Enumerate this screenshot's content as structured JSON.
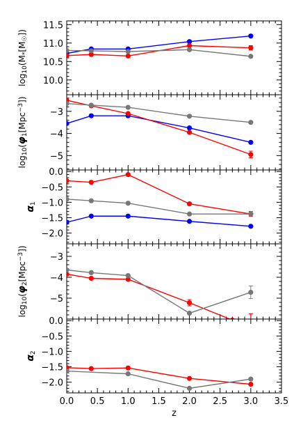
{
  "chart_data": {
    "type": "line",
    "xlabel": "z",
    "x_ticks": [
      "0.0",
      "0.5",
      "1.0",
      "1.5",
      "2.0",
      "2.5",
      "3.0",
      "3.5"
    ],
    "xlim": [
      0,
      3.5
    ],
    "panels": [
      {
        "ylabel_parts": [
          [
            "log",
            "n"
          ],
          [
            "10",
            "sub"
          ],
          [
            "(M",
            "n"
          ],
          [
            "*",
            "sub"
          ],
          [
            "[M",
            "n"
          ],
          [
            "☉",
            "sub"
          ],
          [
            "])",
            "n"
          ]
        ],
        "ylim": [
          9.6,
          11.6
        ],
        "y_ticks": [
          {
            "v": 10.0,
            "t": "10.0"
          },
          {
            "v": 10.5,
            "t": "10.5"
          },
          {
            "v": 11.0,
            "t": "11.0"
          },
          {
            "v": 11.5,
            "t": "11.5"
          }
        ],
        "series": [
          {
            "color": "#0000ff",
            "x": [
              0,
              0.4,
              1.0,
              2.0,
              3.0
            ],
            "y": [
              10.72,
              10.84,
              10.84,
              11.04,
              11.19
            ],
            "err": [
              0,
              0,
              0,
              0,
              0
            ]
          },
          {
            "color": "#ff0000",
            "x": [
              0,
              0.4,
              1.0,
              2.0,
              3.0
            ],
            "y": [
              10.66,
              10.69,
              10.65,
              10.93,
              10.87
            ],
            "err": [
              0,
              0,
              0,
              0,
              0.06
            ]
          },
          {
            "color": "#777777",
            "x": [
              0,
              0.4,
              1.0,
              2.0,
              3.0
            ],
            "y": [
              10.8,
              10.79,
              10.77,
              10.82,
              10.64
            ],
            "err": [
              0,
              0,
              0,
              0,
              0
            ]
          }
        ]
      },
      {
        "ylabel_parts": [
          [
            "log",
            "n"
          ],
          [
            "10",
            "sub"
          ],
          [
            "(",
            "n"
          ],
          [
            "φ",
            "bi"
          ],
          [
            "1",
            "sub"
          ],
          [
            "[Mpc",
            "n"
          ],
          [
            "−3",
            "sup"
          ],
          [
            "])",
            "n"
          ]
        ],
        "ylim": [
          -5.65,
          -2.25
        ],
        "y_ticks": [
          {
            "v": -3,
            "t": "−3"
          },
          {
            "v": -4,
            "t": "−4"
          },
          {
            "v": -5,
            "t": "−5"
          }
        ],
        "series": [
          {
            "color": "#0000ff",
            "x": [
              0,
              0.4,
              1.0,
              2.0,
              3.0
            ],
            "y": [
              -3.55,
              -3.2,
              -3.2,
              -3.75,
              -4.4
            ],
            "err": [
              0,
              0,
              0,
              0,
              0
            ]
          },
          {
            "color": "#ff0000",
            "x": [
              0,
              0.4,
              1.0,
              2.0,
              3.0
            ],
            "y": [
              -2.5,
              -2.75,
              -3.1,
              -3.95,
              -4.95
            ],
            "err": [
              0,
              0,
              0,
              0,
              0.15
            ]
          },
          {
            "color": "#777777",
            "x": [
              0,
              0.4,
              1.0,
              2.0,
              3.0
            ],
            "y": [
              -2.65,
              -2.72,
              -2.82,
              -3.22,
              -3.5
            ],
            "err": [
              0,
              0,
              0,
              0,
              0
            ]
          }
        ]
      },
      {
        "ylabel_parts": [
          [
            "α",
            "bi"
          ],
          [
            "1",
            "sub"
          ]
        ],
        "ylim": [
          -2.35,
          0.05
        ],
        "y_ticks": [
          {
            "v": 0.0,
            "t": "0.0"
          },
          {
            "v": -0.5,
            "t": "−0.5"
          },
          {
            "v": -1.0,
            "t": "−1.0"
          },
          {
            "v": -1.5,
            "t": "−1.5"
          },
          {
            "v": -2.0,
            "t": "−2.0"
          }
        ],
        "series": [
          {
            "color": "#0000ff",
            "x": [
              0,
              0.4,
              1.0,
              2.0,
              3.0
            ],
            "y": [
              -1.65,
              -1.45,
              -1.45,
              -1.62,
              -1.78
            ],
            "err": [
              0,
              0,
              0,
              0,
              0
            ]
          },
          {
            "color": "#ff0000",
            "x": [
              0,
              0.4,
              1.0,
              2.0,
              3.0
            ],
            "y": [
              -0.3,
              -0.35,
              -0.1,
              -1.05,
              -1.38
            ],
            "err": [
              0,
              0,
              0,
              0,
              0.08
            ]
          },
          {
            "color": "#777777",
            "x": [
              0,
              0.4,
              1.0,
              2.0,
              3.0
            ],
            "y": [
              -0.9,
              -0.95,
              -1.03,
              -1.38,
              -1.38
            ],
            "err": [
              0,
              0,
              0,
              0,
              0
            ]
          }
        ]
      },
      {
        "ylabel_parts": [
          [
            "log",
            "n"
          ],
          [
            "10",
            "sub"
          ],
          [
            "(",
            "n"
          ],
          [
            "φ",
            "bi"
          ],
          [
            "2",
            "sub"
          ],
          [
            "[Mpc",
            "n"
          ],
          [
            "−3",
            "sup"
          ],
          [
            "])",
            "n"
          ]
        ],
        "ylim": [
          -6.0,
          -2.4
        ],
        "y_ticks": [
          {
            "v": -3,
            "t": "−3"
          },
          {
            "v": -4,
            "t": "−4"
          },
          {
            "v": -5,
            "t": "−5"
          }
        ],
        "series": [
          {
            "color": "#ff0000",
            "x": [
              0,
              0.4,
              1.0,
              2.0,
              2.7
            ],
            "y": [
              -3.85,
              -4.05,
              -4.1,
              -5.22,
              -6.05
            ],
            "err": [
              0,
              0,
              0,
              0.15,
              0
            ]
          },
          {
            "color": "#777777",
            "x": [
              0,
              0.4,
              1.0,
              2.0,
              3.0
            ],
            "y": [
              -3.65,
              -3.78,
              -3.92,
              -5.72,
              -4.72
            ],
            "err": [
              0,
              0,
              0,
              0,
              0.3
            ]
          }
        ],
        "upper_limit": {
          "color": "#ff0000",
          "x": 3.0,
          "y": -5.75
        }
      },
      {
        "ylabel_parts": [
          [
            "α",
            "bi"
          ],
          [
            "2",
            "sub"
          ]
        ],
        "ylim": [
          -2.35,
          0.05
        ],
        "y_ticks": [
          {
            "v": 0.0,
            "t": "0.0"
          },
          {
            "v": -0.5,
            "t": "−0.5"
          },
          {
            "v": -1.0,
            "t": "−1.0"
          },
          {
            "v": -1.5,
            "t": "−1.5"
          },
          {
            "v": -2.0,
            "t": "−2.0"
          }
        ],
        "series": [
          {
            "color": "#ff0000",
            "x": [
              0,
              0.4,
              1.0,
              2.0,
              3.0
            ],
            "y": [
              -1.53,
              -1.56,
              -1.54,
              -1.88,
              -2.07
            ],
            "err": [
              0,
              0,
              0,
              0,
              0
            ]
          },
          {
            "color": "#777777",
            "x": [
              0,
              1.0,
              2.0,
              3.0
            ],
            "y": [
              -1.64,
              -1.73,
              -2.2,
              -1.9
            ],
            "err": [
              0,
              0,
              0,
              0
            ]
          }
        ]
      }
    ]
  }
}
